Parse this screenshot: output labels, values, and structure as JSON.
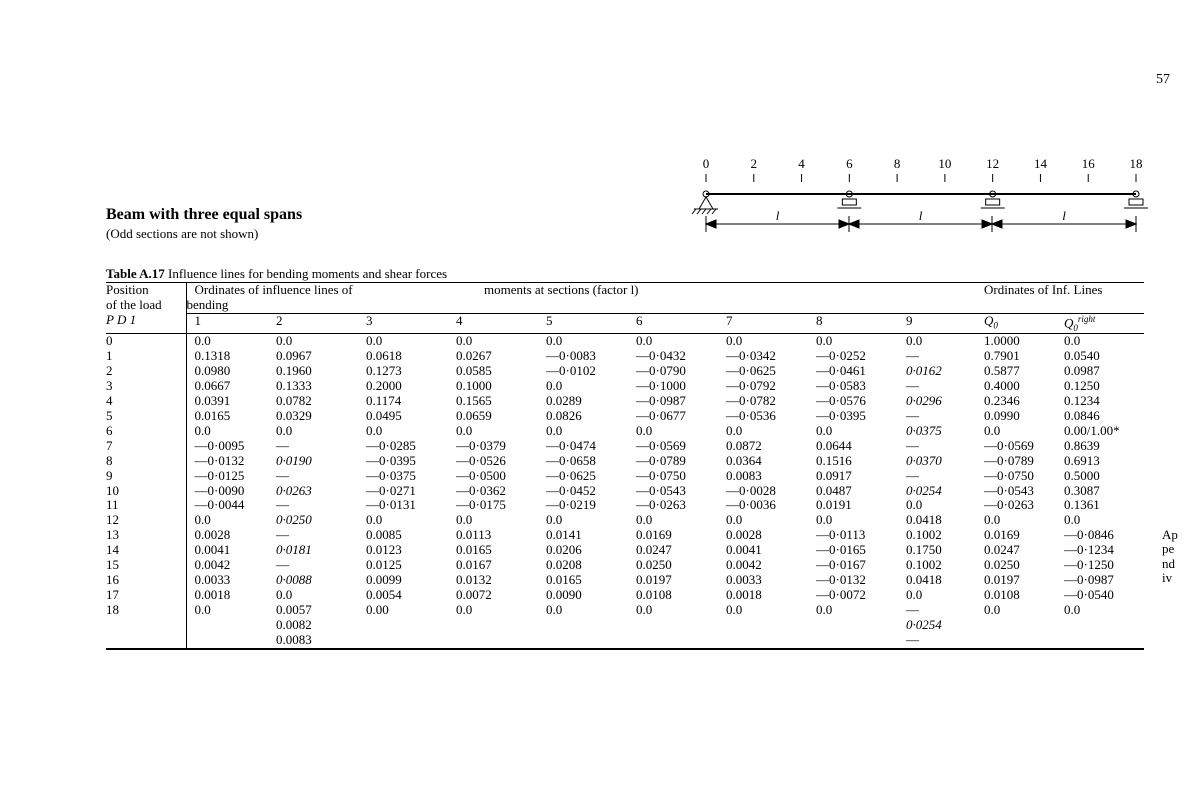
{
  "page_number": "57",
  "margin_note": [
    "Ap",
    "pe",
    "nd",
    "iv"
  ],
  "title": "Beam with three equal spans",
  "subtitle": "(Odd sections are not shown)",
  "caption_bold": "Table A.17",
  "caption_rest": " Influence lines for bending moments and shear forces",
  "header": {
    "pos_line1": "Position",
    "pos_line2": "of the load",
    "pos_line3": "P D 1",
    "group1_line1": "Ordinates of influence lines of",
    "group1_line2": "bending",
    "group2": "moments at sections (factor l)",
    "group3": "Ordinates of Inf. Lines",
    "cols": [
      "1",
      "2",
      "3",
      "4",
      "5",
      "6",
      "7",
      "8",
      "9"
    ],
    "q0": "Q",
    "q0sub": "0",
    "q0r": "Q",
    "q0r_sub": "0",
    "q0r_sup": "right"
  },
  "diagram": {
    "ticks": [
      "0",
      "2",
      "4",
      "6",
      "8",
      "10",
      "12",
      "14",
      "16",
      "18"
    ],
    "span_label": "l"
  },
  "rows": [
    {
      "p": "0",
      "v": [
        "0.0",
        "0.0",
        "0.0",
        "0.0",
        "0.0",
        "0.0",
        "0.0",
        "0.0",
        "0.0",
        "1.0000",
        "0.0"
      ],
      "b": []
    },
    {
      "p": "1",
      "v": [
        "0.1318",
        "0.0967",
        "0.0618",
        "0.0267",
        "—0·0083",
        "—0·0432",
        "—0·0342",
        "—0·0252",
        "—",
        "0.7901",
        "0.0540"
      ],
      "b": []
    },
    {
      "p": "2",
      "v": [
        "0.0980",
        "0.1960",
        "0.1273",
        "0.0585",
        "—0·0102",
        "—0·0790",
        "—0·0625",
        "—0·0461",
        "0·0162",
        "0.5877",
        "0.0987"
      ],
      "b": [
        8
      ]
    },
    {
      "p": "3",
      "v": [
        "0.0667",
        "0.1333",
        "0.2000",
        "0.1000",
        "0.0",
        "—0·1000",
        "—0·0792",
        "—0·0583",
        "—",
        "0.4000",
        "0.1250"
      ],
      "b": []
    },
    {
      "p": "4",
      "v": [
        "0.0391",
        "0.0782",
        "0.1174",
        "0.1565",
        "0.0289",
        "—0·0987",
        "—0·0782",
        "—0·0576",
        "0·0296",
        "0.2346",
        "0.1234"
      ],
      "b": [
        8
      ]
    },
    {
      "p": "5",
      "v": [
        "0.0165",
        "0.0329",
        "0.0495",
        "0.0659",
        "0.0826",
        "—0·0677",
        "—0·0536",
        "—0·0395",
        "—",
        "0.0990",
        "0.0846"
      ],
      "b": []
    },
    {
      "p": "6",
      "v": [
        "0.0",
        "0.0",
        "0.0",
        "0.0",
        "0.0",
        "0.0",
        "0.0",
        "0.0",
        "0·0375",
        "0.0",
        "0.00/1.00*"
      ],
      "b": [
        8,
        10
      ]
    },
    {
      "p": "7",
      "v": [
        "—0·0095",
        "—",
        "—0·0285",
        "—0·0379",
        "—0·0474",
        "—0·0569",
        "0.0872",
        "0.0644",
        "—",
        "—0·0569",
        "0.8639"
      ],
      "b": []
    },
    {
      "p": "8",
      "v": [
        "—0·0132",
        "0·0190",
        "—0·0395",
        "—0·0526",
        "—0·0658",
        "—0·0789",
        "0.0364",
        "0.1516",
        "0·0370",
        "—0·0789",
        "0.6913"
      ],
      "b": [
        1,
        5,
        7,
        8,
        9,
        10
      ]
    },
    {
      "p": "9",
      "v": [
        "—0·0125",
        "—",
        "—0·0375",
        "—0·0500",
        "—0·0625",
        "—0·0750",
        "0.0083",
        "0.0917",
        "—",
        "—0·0750",
        "0.5000"
      ],
      "b": []
    },
    {
      "p": "10",
      "v": [
        "—0·0090",
        "0·0263",
        "—0·0271",
        "—0·0362",
        "—0·0452",
        "—0·0543",
        "—0·0028",
        "0.0487",
        "0·0254",
        "—0·0543",
        "0.3087"
      ],
      "b": [
        1,
        5,
        8
      ]
    },
    {
      "p": "11",
      "v": [
        "—0·0044",
        "—",
        "—0·0131",
        "—0·0175",
        "—0·0219",
        "—0·0263",
        "—0·0036",
        "0.0191",
        "0.0",
        "—0·0263",
        "0.1361"
      ],
      "b": []
    },
    {
      "p": "12",
      "v": [
        "0.0",
        "0·0250",
        "0.0",
        "0.0",
        "0.0",
        "0.0",
        "0.0",
        "0.0",
        "0.0418",
        "0.0",
        "0.0"
      ],
      "b": [
        1
      ]
    },
    {
      "p": "13",
      "v": [
        "0.0028",
        "—",
        "0.0085",
        "0.0113",
        "0.0141",
        "0.0169",
        "0.0028",
        "—0·0113",
        "0.1002",
        "0.0169",
        "—0·0846"
      ],
      "b": []
    },
    {
      "p": "14",
      "v": [
        "0.0041",
        "0·0181",
        "0.0123",
        "0.0165",
        "0.0206",
        "0.0247",
        "0.0041",
        "—0·0165",
        "0.1750",
        "0.0247",
        "—0·1234"
      ],
      "b": [
        1
      ]
    },
    {
      "p": "15",
      "v": [
        "0.0042",
        "—",
        "0.0125",
        "0.0167",
        "0.0208",
        "0.0250",
        "0.0042",
        "—0·0167",
        "0.1002",
        "0.0250",
        "—0·1250"
      ],
      "b": []
    },
    {
      "p": "16",
      "v": [
        "0.0033",
        "0·0088",
        "0.0099",
        "0.0132",
        "0.0165",
        "0.0197",
        "0.0033",
        "—0·0132",
        "0.0418",
        "0.0197",
        "—0·0987"
      ],
      "b": [
        1
      ]
    },
    {
      "p": "17",
      "v": [
        "0.0018",
        "0.0",
        "0.0054",
        "0.0072",
        "0.0090",
        "0.0108",
        "0.0018",
        "—0·0072",
        "0.0",
        "0.0108",
        "—0·0540"
      ],
      "b": []
    },
    {
      "p": "18",
      "v": [
        "0.0",
        "0.0057",
        "0.00",
        "0.0",
        "0.0",
        "0.0",
        "0.0",
        "0.0",
        "—",
        "0.0",
        "0.0"
      ],
      "b": []
    }
  ],
  "extra_col2": [
    "0.0082",
    "0.0083"
  ],
  "extra_col9": "0·0254",
  "extra_col9b": "—"
}
